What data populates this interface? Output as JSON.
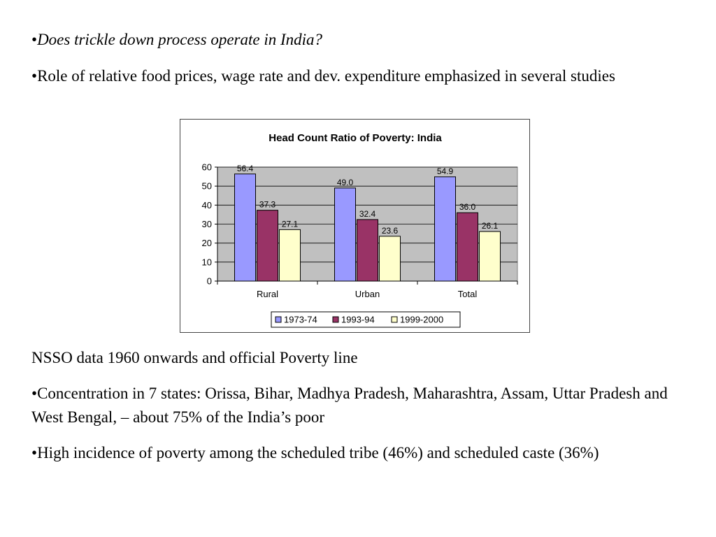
{
  "slide": {
    "bullet": "•",
    "p1": "Does trickle down process operate in India?",
    "p2": "Role of relative food prices, wage rate and dev. expenditure emphasized in several studies",
    "p3": "NSSO data 1960 onwards and official Poverty line",
    "p4": "Concentration in 7 states: Orissa, Bihar, Madhya Pradesh, Maharashtra, Assam, Uttar Pradesh and West Bengal, – about 75% of the India’s poor",
    "p5": "High incidence of poverty among the scheduled tribe (46%) and scheduled caste (36%)"
  },
  "chart_data": {
    "type": "bar",
    "title": "Head Count Ratio of Poverty: India",
    "categories": [
      "Rural",
      "Urban",
      "Total"
    ],
    "series": [
      {
        "name": "1973-74",
        "values": [
          56.4,
          49.0,
          54.9
        ],
        "color": "#9999ff",
        "labels": [
          "56.4",
          "49.0",
          "54.9"
        ]
      },
      {
        "name": "1993-94",
        "values": [
          37.3,
          32.4,
          36.0
        ],
        "color": "#993366",
        "labels": [
          "37.3",
          "32.4",
          "36.0"
        ]
      },
      {
        "name": "1999-2000",
        "values": [
          27.1,
          23.6,
          26.1
        ],
        "color": "#ffffcc",
        "labels": [
          "27.1",
          "23.6",
          "26.1"
        ]
      }
    ],
    "ylim": [
      0,
      60
    ],
    "yticks": [
      0,
      10,
      20,
      30,
      40,
      50,
      60
    ],
    "plot_background": "#c0c0c0",
    "grid": true,
    "legend": "bottom"
  }
}
